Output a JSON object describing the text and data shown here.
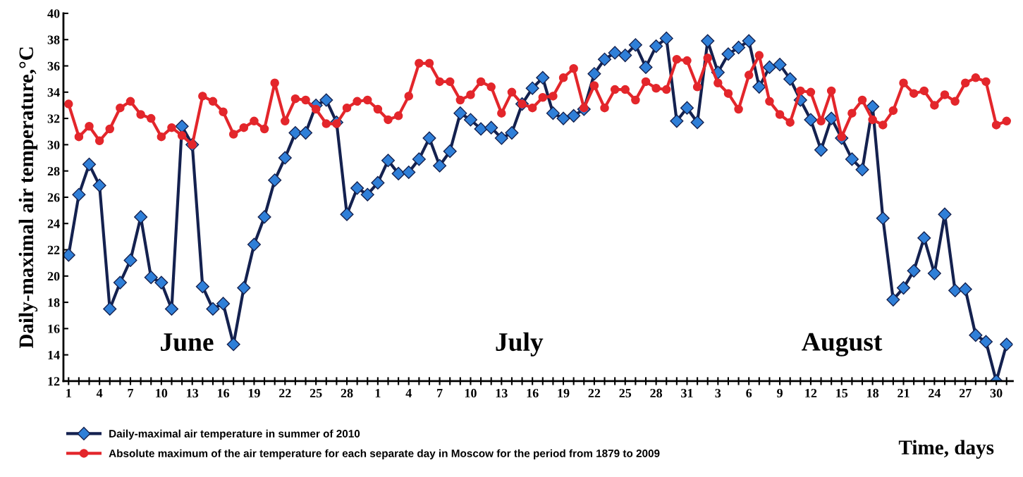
{
  "chart_data": {
    "type": "line",
    "ylabel": "Daily-maximal air temperature,°C",
    "xlabel": "Time, days",
    "categories": [
      "1",
      null,
      null,
      "4",
      null,
      null,
      "7",
      null,
      null,
      "10",
      null,
      null,
      "13",
      null,
      null,
      "16",
      null,
      null,
      "19",
      null,
      null,
      "22",
      null,
      null,
      "25",
      null,
      null,
      "28",
      null,
      null,
      "1",
      null,
      null,
      "4",
      null,
      null,
      "7",
      null,
      null,
      "10",
      null,
      null,
      "13",
      null,
      null,
      "16",
      null,
      null,
      "19",
      null,
      null,
      "22",
      null,
      null,
      "25",
      null,
      null,
      "28",
      null,
      null,
      "31",
      null,
      null,
      "3",
      null,
      null,
      "6",
      null,
      null,
      "9",
      null,
      null,
      "12",
      null,
      null,
      "15",
      null,
      null,
      "18",
      null,
      null,
      "21",
      null,
      null,
      "24",
      null,
      null,
      "27",
      null,
      null,
      "30",
      null
    ],
    "ylim": [
      12,
      40
    ],
    "yticks": [
      12,
      14,
      16,
      18,
      20,
      22,
      24,
      26,
      28,
      30,
      32,
      34,
      36,
      38,
      40
    ],
    "annotations": [
      "June",
      "July",
      "August"
    ],
    "legend": "bottom left",
    "grid": false,
    "line_style": "solid",
    "series": [
      {
        "name": "Daily-maximal air temperature in summer of 2010",
        "color": "#2f7fd8",
        "marker": "diamond",
        "values": [
          21.6,
          26.2,
          28.5,
          26.9,
          17.5,
          19.5,
          21.2,
          24.5,
          19.9,
          19.5,
          17.5,
          31.4,
          30.0,
          19.2,
          17.5,
          17.9,
          14.8,
          19.1,
          22.4,
          24.5,
          27.3,
          29.0,
          30.9,
          30.9,
          33.0,
          33.4,
          31.7,
          24.7,
          26.7,
          26.2,
          27.1,
          28.8,
          27.8,
          27.9,
          28.9,
          30.5,
          28.4,
          29.5,
          32.4,
          31.9,
          31.2,
          31.3,
          30.5,
          30.9,
          33.1,
          34.3,
          35.1,
          32.4,
          32.0,
          32.2,
          32.7,
          35.4,
          36.5,
          37.0,
          36.8,
          37.6,
          35.9,
          37.5,
          38.1,
          31.8,
          32.8,
          31.7,
          37.9,
          35.5,
          36.9,
          37.4,
          37.9,
          34.4,
          35.9,
          36.1,
          35.0,
          33.4,
          31.9,
          29.6,
          32.0,
          30.5,
          28.9,
          28.1,
          32.9,
          24.4,
          18.2,
          19.1,
          20.4,
          22.9,
          20.2,
          24.7,
          18.9,
          19.0,
          15.5,
          15.0,
          12.0,
          14.8
        ]
      },
      {
        "name": "Absolute maximum of the air temperature for each separate day in Moscow for the period from 1879 to 2009",
        "color": "#e3262b",
        "marker": "circle",
        "values": [
          33.1,
          30.6,
          31.4,
          30.3,
          31.2,
          32.8,
          33.3,
          32.3,
          32.0,
          30.6,
          31.3,
          30.7,
          30.0,
          33.7,
          33.3,
          32.5,
          30.8,
          31.3,
          31.8,
          31.2,
          34.7,
          31.8,
          33.5,
          33.4,
          32.7,
          31.6,
          31.6,
          32.8,
          33.3,
          33.4,
          32.7,
          31.9,
          32.2,
          33.7,
          36.2,
          36.2,
          34.8,
          34.8,
          33.4,
          33.8,
          34.8,
          34.4,
          32.4,
          34.0,
          33.1,
          32.8,
          33.6,
          33.7,
          35.1,
          35.8,
          32.8,
          34.5,
          32.8,
          34.2,
          34.2,
          33.4,
          34.8,
          34.3,
          34.2,
          36.5,
          36.4,
          34.4,
          36.6,
          34.7,
          33.9,
          32.7,
          35.3,
          36.8,
          33.3,
          32.3,
          31.7,
          34.1,
          34.0,
          31.8,
          34.1,
          30.6,
          32.4,
          33.4,
          31.9,
          31.5,
          32.6,
          34.7,
          33.9,
          34.1,
          33.0,
          33.8,
          33.3,
          34.7,
          35.1,
          34.8,
          31.5,
          31.8
        ]
      }
    ]
  }
}
